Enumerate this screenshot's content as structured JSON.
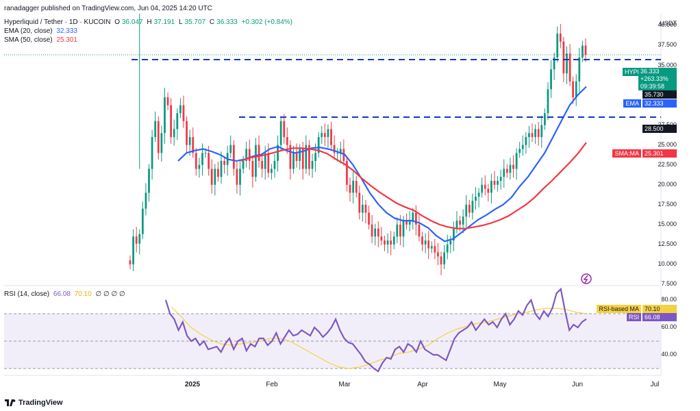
{
  "top_info": "ranadagger published on TradingView.com, Jun 04, 2025 14:20 UTC",
  "legend": {
    "symbol": "Hyperliquid / Tether · 1D · KUCOIN",
    "o_label": "O",
    "o_value": "36.047",
    "h_label": "H",
    "h_value": "37.191",
    "l_label": "L",
    "l_value": "35.707",
    "c_label": "C",
    "c_value": "36.333",
    "change": "+0.302 (+0.84%)",
    "ema_label": "EMA (20, close)",
    "ema_value": "32.333",
    "sma_label": "SMA (50, close)",
    "sma_value": "25.301",
    "rsi_label": "RSI (14, close)",
    "rsi_value": "66.08",
    "rsi_ma_value": "70.10",
    "rsi_nulls": "∅ ∅ ∅ ∅"
  },
  "currency": "USDT",
  "price_axis": [
    "40.000",
    "37.500",
    "35.000",
    "32.500",
    "30.000",
    "27.500",
    "25.000",
    "22.500",
    "20.000",
    "17.500",
    "15.000",
    "12.500",
    "10.000",
    "7.500"
  ],
  "rsi_axis": [
    "80.00",
    "60.00",
    "40.00"
  ],
  "x_axis": [
    {
      "label": "2025",
      "bold": true
    },
    {
      "label": "Feb",
      "bold": false
    },
    {
      "label": "Mar",
      "bold": false
    },
    {
      "label": "Apr",
      "bold": false
    },
    {
      "label": "May",
      "bold": false
    },
    {
      "label": "Jun",
      "bold": false
    },
    {
      "label": "Jul",
      "bold": false
    }
  ],
  "price_tags": {
    "symbol_tag": "HYPEUSDT",
    "last_price": "36.333",
    "pct_change": "+263.33%",
    "countdown": "09:39:58",
    "level_high": "35.730",
    "ema_tag": "EMA",
    "ema_tag_value": "32.333",
    "level_low": "28.500",
    "sma_tag": "SMA:MA",
    "sma_tag_value": "25.301",
    "rsi_ma_tag": "RSI-based MA",
    "rsi_ma_tag_value": "70.10",
    "rsi_tag": "RSI",
    "rsi_tag_value": "66.08"
  },
  "brand": "TradingView",
  "colors": {
    "up": "#089981",
    "down": "#f23645",
    "ema": "#2962ff",
    "sma": "#f23645",
    "rsi": "#7e57c2",
    "rsi_ma": "#f5d142",
    "level": "#1535b8",
    "rsi_band": "#ede7f6"
  },
  "chart_data": {
    "type": "candlestick",
    "title": "Hyperliquid / Tether · 1D · KUCOIN",
    "xlabel": "",
    "ylabel": "USDT",
    "ylim": [
      7.5,
      41.5
    ],
    "x_ticks": [
      "2025",
      "Feb",
      "Mar",
      "Apr",
      "May",
      "Jun",
      "Jul"
    ],
    "horizontal_levels": [
      35.73,
      28.5
    ],
    "closes": [
      10.0,
      13.5,
      12.6,
      13.8,
      17.0,
      19.0,
      22.0,
      26.0,
      28.0,
      24.0,
      26.5,
      31.0,
      30.0,
      26.0,
      27.0,
      29.0,
      30.0,
      28.0,
      25.0,
      26.0,
      24.0,
      22.0,
      22.5,
      24.0,
      24.0,
      22.0,
      20.0,
      22.0,
      21.0,
      23.0,
      22.5,
      24.0,
      25.0,
      22.0,
      20.0,
      22.0,
      23.0,
      24.5,
      23.0,
      21.0,
      25.0,
      23.0,
      22.0,
      24.0,
      21.5,
      22.0,
      23.0,
      25.0,
      28.0,
      26.0,
      25.0,
      22.0,
      24.0,
      23.0,
      24.5,
      22.0,
      25.0,
      22.0,
      23.0,
      24.0,
      26.0,
      26.5,
      26.0,
      27.0,
      25.0,
      24.0,
      24.0,
      24.5,
      23.0,
      20.0,
      19.0,
      20.5,
      19.0,
      16.5,
      17.5,
      16.5,
      15.0,
      13.5,
      14.5,
      13.5,
      13.0,
      12.5,
      13.0,
      12.5,
      13.5,
      15.0,
      13.5,
      15.5,
      15.0,
      15.5,
      16.5,
      15.0,
      13.5,
      12.5,
      13.0,
      12.0,
      12.3,
      11.5,
      11.0,
      10.0,
      11.5,
      12.5,
      13.0,
      14.5,
      15.5,
      15.0,
      16.0,
      17.5,
      16.5,
      18.0,
      18.5,
      19.0,
      20.0,
      19.5,
      19.0,
      20.5,
      20.0,
      20.5,
      21.0,
      22.0,
      21.5,
      22.5,
      22.0,
      24.0,
      24.5,
      25.0,
      26.0,
      26.5,
      26.0,
      27.0,
      26.0,
      27.5,
      29.0,
      32.0,
      34.5,
      36.0,
      39.0,
      38.0,
      34.0,
      36.5,
      33.0,
      31.0,
      33.0,
      36.0,
      37.5,
      36.3
    ],
    "opens": [
      10.5,
      10.0,
      13.5,
      12.6,
      13.8,
      17.0,
      19.0,
      22.0,
      26.0,
      28.0,
      24.0,
      26.5,
      31.0,
      30.0,
      26.0,
      27.0,
      29.0,
      30.0,
      28.0,
      25.0,
      26.0,
      24.0,
      22.0,
      22.5,
      24.0,
      24.0,
      22.0,
      20.0,
      22.0,
      21.0,
      23.0,
      22.5,
      24.0,
      25.0,
      22.0,
      20.0,
      22.0,
      23.0,
      24.5,
      23.0,
      21.0,
      25.0,
      23.0,
      22.0,
      24.0,
      21.5,
      22.0,
      23.0,
      25.0,
      28.0,
      26.0,
      25.0,
      22.0,
      24.0,
      23.0,
      24.5,
      22.0,
      25.0,
      22.0,
      23.0,
      24.0,
      26.0,
      26.5,
      26.0,
      27.0,
      25.0,
      24.0,
      24.0,
      24.5,
      23.0,
      20.0,
      19.0,
      20.5,
      19.0,
      16.5,
      17.5,
      16.5,
      15.0,
      13.5,
      14.5,
      13.5,
      13.0,
      12.5,
      13.0,
      12.5,
      13.5,
      15.0,
      13.5,
      15.5,
      15.0,
      15.5,
      16.5,
      15.0,
      13.5,
      12.5,
      13.0,
      12.0,
      12.3,
      11.5,
      11.0,
      10.0,
      11.5,
      12.5,
      13.0,
      14.5,
      15.5,
      15.0,
      16.0,
      17.5,
      16.5,
      18.0,
      18.5,
      19.0,
      20.0,
      19.5,
      19.0,
      20.5,
      20.0,
      20.5,
      21.0,
      22.0,
      21.5,
      22.5,
      22.0,
      24.0,
      24.5,
      25.0,
      26.0,
      26.5,
      26.0,
      27.0,
      26.0,
      27.5,
      29.0,
      32.0,
      34.5,
      36.0,
      39.0,
      38.0,
      34.0,
      36.5,
      33.0,
      31.0,
      33.0,
      36.0,
      37.5
    ],
    "ema20_values": [
      23.0,
      24.0,
      24.3,
      24.5,
      24.2,
      23.8,
      23.2,
      23.0,
      23.2,
      23.6,
      23.8,
      24.5,
      24.8,
      24.3,
      24.0,
      24.2,
      24.6,
      24.7,
      24.5,
      24.2,
      23.8,
      22.5,
      20.8,
      19.0,
      17.6,
      16.5,
      15.8,
      15.5,
      15.5,
      15.2,
      14.6,
      13.6,
      12.9,
      13.2,
      14.0,
      14.8,
      15.6,
      16.2,
      16.9,
      17.5,
      18.4,
      19.8,
      21.0,
      22.5,
      24.0,
      26.0,
      28.0,
      30.0,
      31.3,
      32.333
    ],
    "sma50_values": [
      23.0,
      23.4,
      23.6,
      23.8,
      24.1,
      24.4,
      24.6,
      24.6,
      24.5,
      24.3,
      23.9,
      23.2,
      22.6,
      21.8,
      20.8,
      19.9,
      19.1,
      18.4,
      17.7,
      17.2,
      16.8,
      16.1,
      15.5,
      15.0,
      14.7,
      14.5,
      14.5,
      14.7,
      14.9,
      15.2,
      15.6,
      16.1,
      16.8,
      17.5,
      18.4,
      19.5,
      20.5,
      21.6,
      22.7,
      23.9,
      25.301
    ],
    "rsi_values": [
      80,
      70,
      66,
      58,
      64,
      54,
      50,
      52,
      47,
      50,
      44,
      45,
      46,
      42,
      48,
      52,
      44,
      50,
      52,
      43,
      48,
      46,
      52,
      52,
      47,
      50,
      56,
      48,
      53,
      58,
      54,
      55,
      58,
      56,
      54,
      60,
      57,
      53,
      56,
      60,
      66,
      58,
      52,
      49,
      48,
      44,
      40,
      35,
      33,
      30,
      28,
      34,
      38,
      37,
      44,
      46,
      42,
      48,
      46,
      42,
      50,
      44,
      42,
      40,
      40,
      38,
      36,
      44,
      52,
      56,
      58,
      60,
      64,
      58,
      62,
      66,
      62,
      64,
      60,
      66,
      70,
      62,
      66,
      72,
      69,
      76,
      80,
      70,
      66,
      72,
      68,
      74,
      85,
      88,
      72,
      58,
      62,
      60,
      64,
      66.08
    ],
    "rsi_ma_values": [
      75,
      68,
      60,
      55,
      51,
      48,
      47,
      48,
      49,
      50,
      52,
      52,
      50,
      46,
      42,
      38,
      34,
      31,
      30,
      31,
      33,
      36,
      38,
      41,
      42,
      44,
      47,
      52,
      56,
      59,
      61,
      63,
      64,
      66,
      68,
      70,
      71,
      73,
      74,
      74,
      73,
      71,
      70.1
    ],
    "rsi_ylim": [
      25,
      90
    ],
    "rsi_band": [
      30,
      70
    ]
  }
}
